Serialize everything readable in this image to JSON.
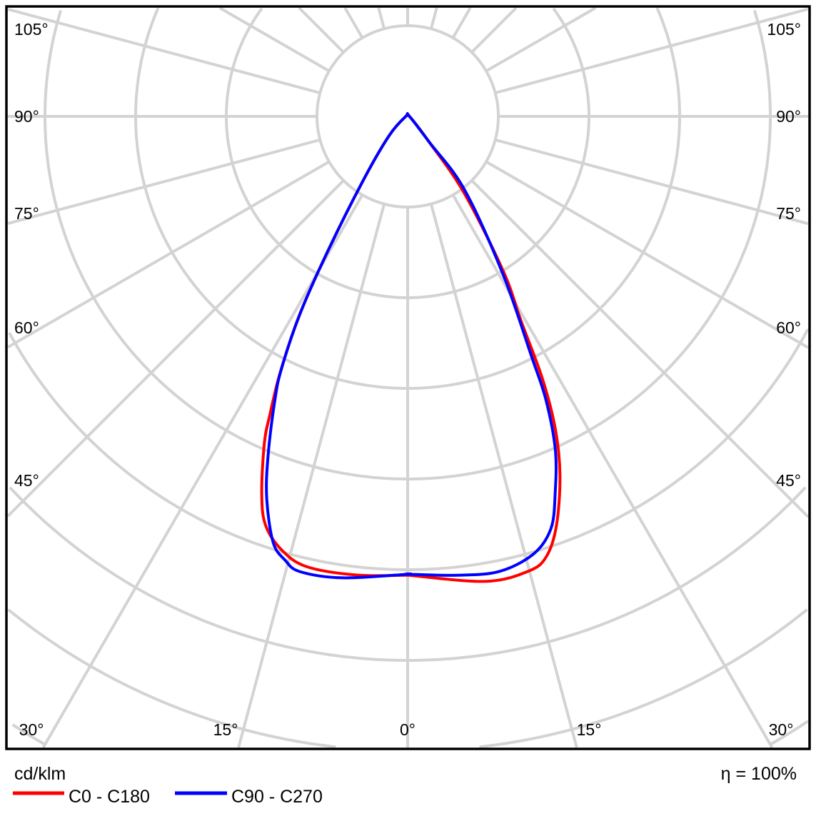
{
  "chart_data": {
    "type": "polar",
    "unit_label": "cd/klm",
    "efficiency_label": "η = 100%",
    "angle_labels_left": [
      "105°",
      "90°",
      "75°",
      "60°",
      "45°"
    ],
    "angle_labels_right": [
      "105°",
      "90°",
      "75°",
      "60°",
      "45°"
    ],
    "angle_labels_bottom": [
      "30°",
      "15°",
      "0°",
      "15°",
      "30°"
    ],
    "grid": true,
    "angle_step_deg": 15,
    "legend_placement": "bottom-left",
    "series": [
      {
        "name": "C0 - C180",
        "color": "#ff0000",
        "left_half": [
          [
            0,
            5.06
          ],
          [
            6.3,
            5.09
          ],
          [
            12.6,
            5.09
          ],
          [
            16.2,
            4.98
          ],
          [
            19.2,
            4.77
          ],
          [
            21.2,
            4.45
          ],
          [
            23.7,
            3.93
          ],
          [
            24.8,
            3.62
          ],
          [
            26.5,
            3.14
          ],
          [
            28.6,
            2.48
          ],
          [
            30.7,
            1.71
          ],
          [
            35,
            0.83
          ],
          [
            44,
            0.29
          ],
          [
            90,
            0.02
          ]
        ],
        "right_half": [
          [
            0,
            5.06
          ],
          [
            9.5,
            5.2
          ],
          [
            14.9,
            5.19
          ],
          [
            17.5,
            5.09
          ],
          [
            20,
            4.8
          ],
          [
            23,
            4.3
          ],
          [
            25.3,
            3.81
          ],
          [
            27.2,
            3.25
          ],
          [
            29,
            2.58
          ],
          [
            31.7,
            2.01
          ],
          [
            36.4,
            1.05
          ],
          [
            40,
            0.37
          ],
          [
            90,
            0.02
          ]
        ]
      },
      {
        "name": "C90 - C270",
        "color": "#0000ff",
        "left_half": [
          [
            0,
            5.05
          ],
          [
            8,
            5.14
          ],
          [
            13.3,
            5.16
          ],
          [
            15.4,
            5.08
          ],
          [
            17.5,
            4.93
          ],
          [
            20.2,
            4.5
          ],
          [
            22.3,
            4.06
          ],
          [
            25.1,
            3.45
          ],
          [
            26.6,
            3.1
          ],
          [
            28.6,
            2.48
          ],
          [
            30.7,
            1.71
          ],
          [
            35,
            0.83
          ],
          [
            44,
            0.29
          ],
          [
            90,
            0.02
          ]
        ],
        "right_half": [
          [
            0,
            5.05
          ],
          [
            6.1,
            5.09
          ],
          [
            11.4,
            5.12
          ],
          [
            16.1,
            5.02
          ],
          [
            19.2,
            4.81
          ],
          [
            21.4,
            4.46
          ],
          [
            23.9,
            4.02
          ],
          [
            26,
            3.48
          ],
          [
            27.3,
            2.98
          ],
          [
            31.1,
            2.04
          ],
          [
            37.8,
            1.02
          ],
          [
            40,
            0.37
          ],
          [
            90,
            0.02
          ]
        ]
      }
    ]
  }
}
